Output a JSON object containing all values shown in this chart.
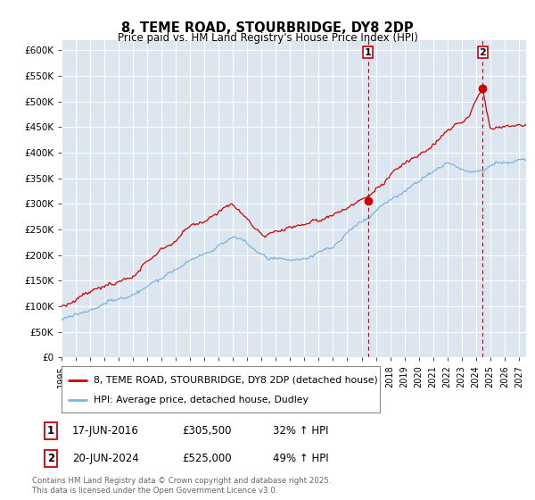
{
  "title": "8, TEME ROAD, STOURBRIDGE, DY8 2DP",
  "subtitle": "Price paid vs. HM Land Registry's House Price Index (HPI)",
  "ylim": [
    0,
    620000
  ],
  "yticks": [
    0,
    50000,
    100000,
    150000,
    200000,
    250000,
    300000,
    350000,
    400000,
    450000,
    500000,
    550000,
    600000
  ],
  "ytick_labels": [
    "£0",
    "£50K",
    "£100K",
    "£150K",
    "£200K",
    "£250K",
    "£300K",
    "£350K",
    "£400K",
    "£450K",
    "£500K",
    "£550K",
    "£600K"
  ],
  "xlim_start": 1995.0,
  "xlim_end": 2027.5,
  "background_color": "#ffffff",
  "plot_bg_color": "#dce6f1",
  "grid_color": "#ffffff",
  "red_color": "#cc0000",
  "blue_color": "#7ab4d8",
  "transaction_1": {
    "date": 2016.46,
    "price": 305500,
    "label": "1"
  },
  "transaction_2": {
    "date": 2024.47,
    "price": 525000,
    "label": "2"
  },
  "legend_label_red": "8, TEME ROAD, STOURBRIDGE, DY8 2DP (detached house)",
  "legend_label_blue": "HPI: Average price, detached house, Dudley",
  "footer": "Contains HM Land Registry data © Crown copyright and database right 2025.\nThis data is licensed under the Open Government Licence v3.0.",
  "xticks": [
    1995,
    1996,
    1997,
    1998,
    1999,
    2000,
    2001,
    2002,
    2003,
    2004,
    2005,
    2006,
    2007,
    2008,
    2009,
    2010,
    2011,
    2012,
    2013,
    2014,
    2015,
    2016,
    2017,
    2018,
    2019,
    2020,
    2021,
    2022,
    2023,
    2024,
    2025,
    2026,
    2027
  ]
}
